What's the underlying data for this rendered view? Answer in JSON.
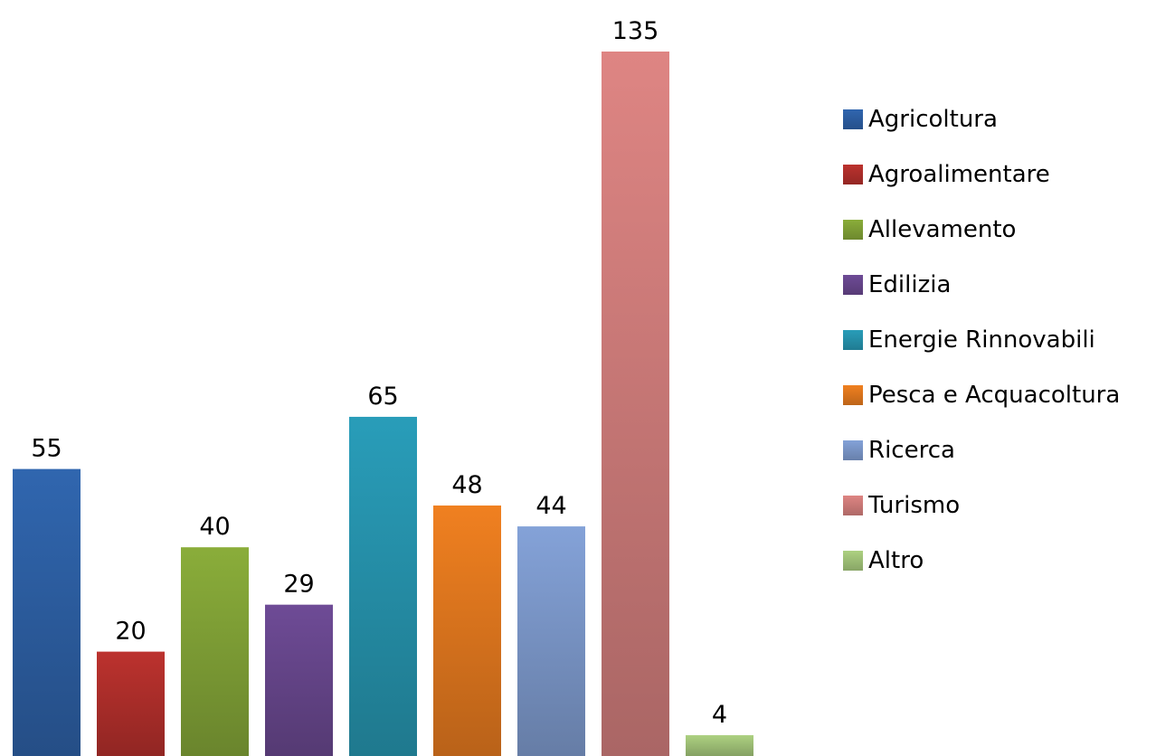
{
  "chart_data": {
    "type": "bar",
    "title": "",
    "xlabel": "",
    "ylabel": "",
    "ylim": [
      0,
      135
    ],
    "grid": false,
    "legend_position": "right",
    "data_labels": true,
    "categories": [
      "Agricoltura",
      "Agroalimentare",
      "Allevamento",
      "Edilizia",
      "Energie Rinnovabili",
      "Pesca e Acquacoltura",
      "Ricerca",
      "Turismo",
      "Altro"
    ],
    "values": [
      55,
      20,
      40,
      29,
      65,
      48,
      44,
      135,
      4
    ],
    "colors": [
      "#2e62a8",
      "#b5302c",
      "#85a638",
      "#6a4890",
      "#2797b2",
      "#e77b1f",
      "#7f9cd0",
      "#d5807e",
      "#a6c97c"
    ]
  }
}
